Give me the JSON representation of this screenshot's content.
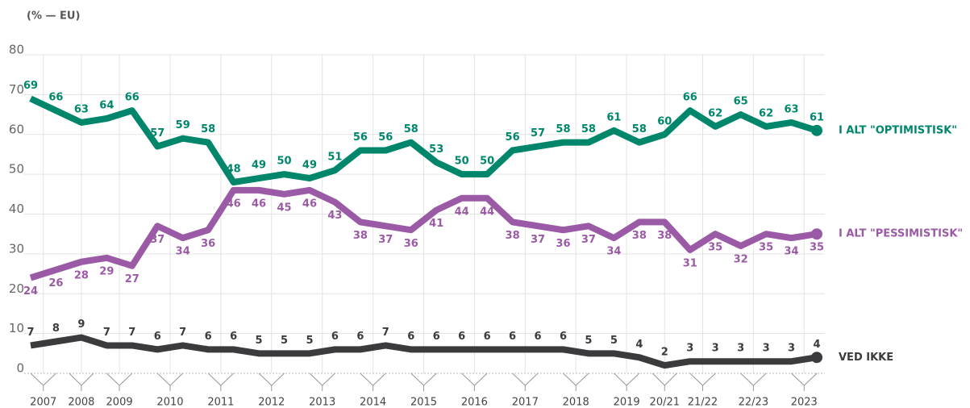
{
  "chart_data": {
    "type": "line",
    "subtitle": "(% — EU)",
    "categories": [
      "2007",
      null,
      "2008",
      "2009",
      null,
      "2010",
      null,
      "2011",
      null,
      "2012",
      null,
      "2013",
      null,
      "2014",
      null,
      "2015",
      null,
      "2016",
      null,
      "2017",
      null,
      "2018",
      null,
      "2019",
      null,
      "20/21",
      "21/22",
      null,
      "22/23",
      null,
      "2023",
      null
    ],
    "series": [
      {
        "name": "I ALT \"OPTIMISTISK\"",
        "color": "#00866b",
        "label_side": "above",
        "values": [
          69,
          66,
          63,
          64,
          66,
          57,
          59,
          58,
          48,
          49,
          50,
          49,
          51,
          56,
          56,
          58,
          53,
          50,
          50,
          56,
          57,
          58,
          58,
          61,
          58,
          60,
          66,
          62,
          65,
          62,
          63,
          61
        ]
      },
      {
        "name": "I ALT \"PESSIMISTISK\"",
        "color": "#9b5aa5",
        "label_side": "below",
        "values": [
          24,
          26,
          28,
          29,
          27,
          37,
          34,
          36,
          46,
          46,
          45,
          46,
          43,
          38,
          37,
          36,
          41,
          44,
          44,
          38,
          37,
          36,
          37,
          34,
          38,
          38,
          31,
          35,
          32,
          35,
          34,
          35
        ]
      },
      {
        "name": "VED IKKE",
        "color": "#3b3b3d",
        "label_side": "above",
        "values": [
          7,
          8,
          9,
          7,
          7,
          6,
          7,
          6,
          6,
          5,
          5,
          5,
          6,
          6,
          7,
          6,
          6,
          6,
          6,
          6,
          6,
          6,
          5,
          5,
          4,
          2,
          3,
          3,
          3,
          3,
          3,
          4
        ]
      }
    ],
    "ylim": [
      0,
      80
    ],
    "yticks": [
      0,
      10,
      20,
      30,
      40,
      50,
      60,
      70,
      80
    ],
    "grid": true
  }
}
